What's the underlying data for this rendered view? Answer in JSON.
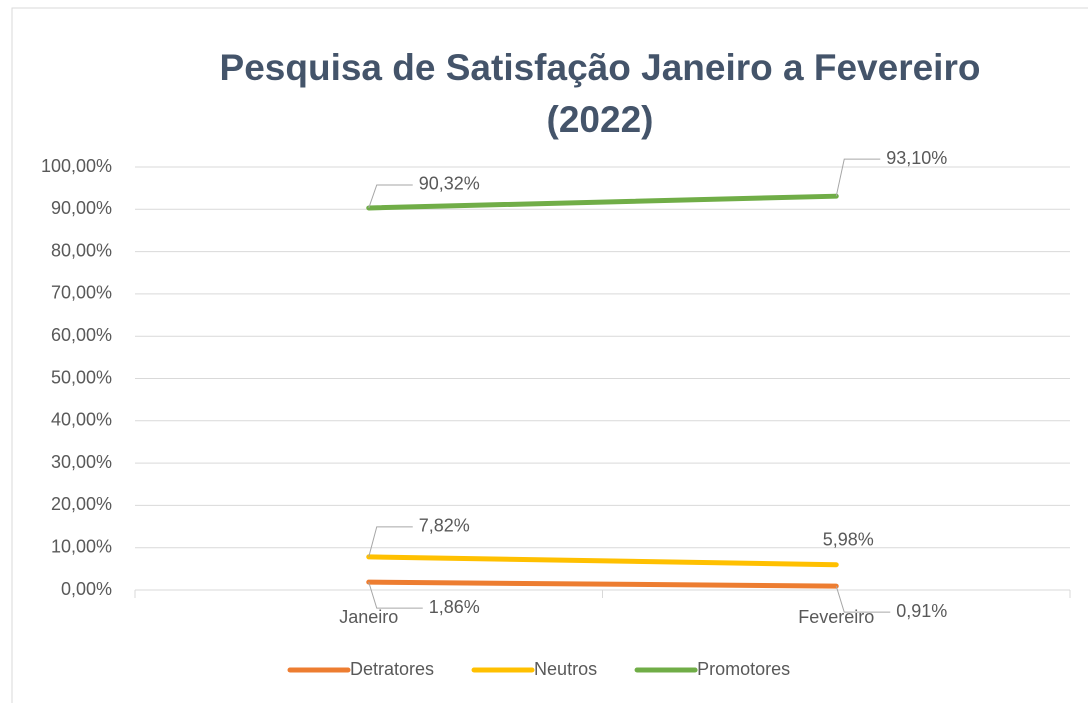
{
  "chart_data": {
    "type": "line",
    "title": "Pesquisa de Satisfação Janeiro a Fevereiro (2022)",
    "categories": [
      "Janeiro",
      "Fevereiro"
    ],
    "series": [
      {
        "name": "Detratores",
        "color": "#ed7d31",
        "values": [
          1.86,
          0.91
        ],
        "value_labels": [
          "1,86%",
          "0,91%"
        ]
      },
      {
        "name": "Neutros",
        "color": "#ffc000",
        "values": [
          7.82,
          5.98
        ],
        "value_labels": [
          "7,82%",
          "5,98%"
        ]
      },
      {
        "name": "Promotores",
        "color": "#70ad47",
        "values": [
          90.32,
          93.1
        ],
        "value_labels": [
          "90,32%",
          "93,10%"
        ]
      }
    ],
    "ylim": [
      0,
      100
    ],
    "yticks": [
      {
        "value": 0,
        "label": "0,00%"
      },
      {
        "value": 10,
        "label": "10,00%"
      },
      {
        "value": 20,
        "label": "20,00%"
      },
      {
        "value": 30,
        "label": "30,00%"
      },
      {
        "value": 40,
        "label": "40,00%"
      },
      {
        "value": 50,
        "label": "50,00%"
      },
      {
        "value": 60,
        "label": "60,00%"
      },
      {
        "value": 70,
        "label": "70,00%"
      },
      {
        "value": 80,
        "label": "80,00%"
      },
      {
        "value": 90,
        "label": "90,00%"
      },
      {
        "value": 100,
        "label": "100,00%"
      }
    ],
    "grid": true,
    "legend": "bottom"
  }
}
